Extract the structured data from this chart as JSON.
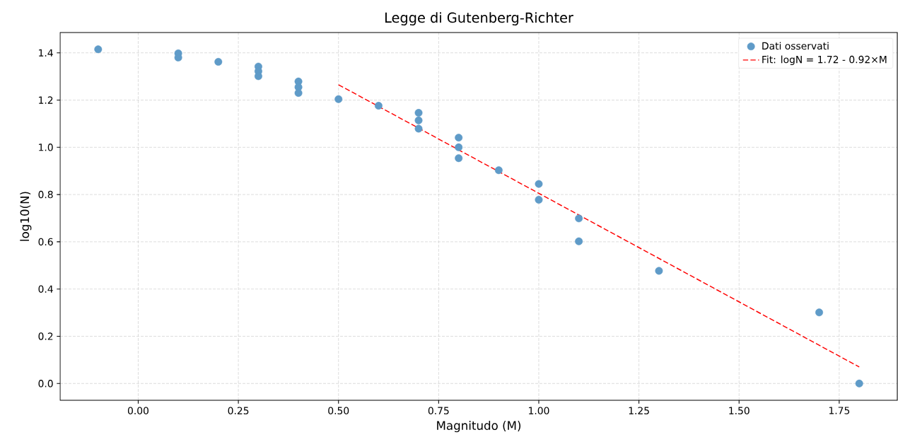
{
  "chart_data": {
    "type": "scatter",
    "title": "Legge di Gutenberg-Richter",
    "xlabel": "Magnitudo (M)",
    "ylabel": "log10(N)",
    "series": [
      {
        "name": "Dati osservati",
        "color": "#5f9bc8",
        "marker": "circle",
        "x": [
          -0.1,
          0.1,
          0.1,
          0.2,
          0.3,
          0.3,
          0.3,
          0.4,
          0.4,
          0.4,
          0.5,
          0.6,
          0.7,
          0.7,
          0.7,
          0.8,
          0.8,
          0.8,
          0.9,
          1.0,
          1.0,
          1.1,
          1.1,
          1.3,
          1.7,
          1.8
        ],
        "values": [
          1.415,
          1.398,
          1.38,
          1.362,
          1.342,
          1.322,
          1.301,
          1.279,
          1.255,
          1.23,
          1.204,
          1.176,
          1.146,
          1.114,
          1.079,
          1.041,
          1.0,
          0.954,
          0.903,
          0.845,
          0.778,
          0.699,
          0.602,
          0.477,
          0.301,
          0.0
        ]
      },
      {
        "name": "Fit: logN = 1.72 - 0.92×M",
        "type": "line",
        "color": "#ff0000",
        "marker": "none",
        "line_style": "dashed",
        "x": [
          0.5,
          1.8
        ],
        "values": [
          1.265,
          0.07
        ]
      }
    ],
    "xlim": [
      -0.195,
      1.895
    ],
    "ylim": [
      -0.071,
      1.486
    ],
    "xticks": [
      {
        "value": 0,
        "label": "0.00"
      },
      0.25,
      {
        "value": 0.5,
        "label": "0.50"
      },
      0.75,
      {
        "value": 1,
        "label": "1.00"
      },
      1.25,
      {
        "value": 1.5,
        "label": "1.50"
      },
      1.75
    ],
    "yticks": [
      {
        "value": 0,
        "label": "0.0"
      },
      0.2,
      0.4,
      0.6,
      0.8,
      {
        "value": 1,
        "label": "1.0"
      },
      1.2,
      1.4
    ],
    "grid": true,
    "legend": "top right"
  }
}
